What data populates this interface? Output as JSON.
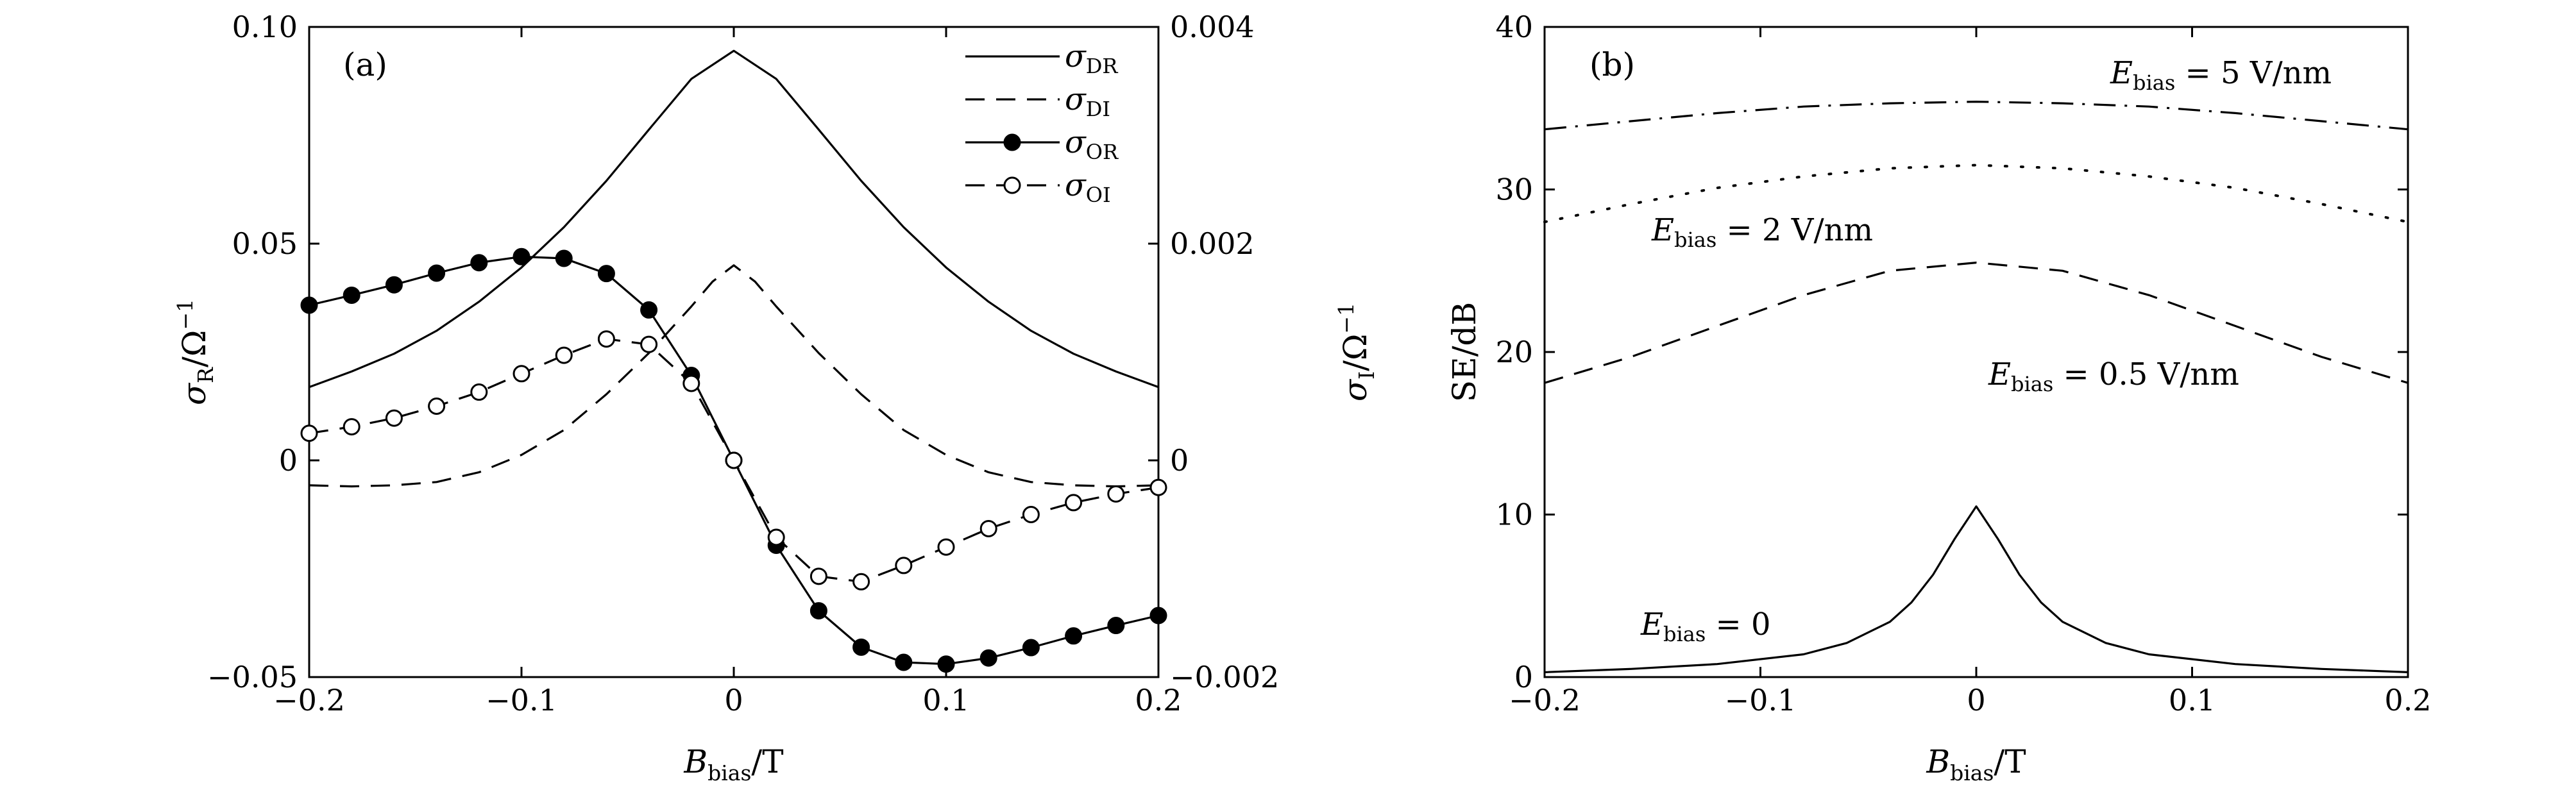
{
  "chart_data": [
    {
      "id": "a",
      "type": "line",
      "panel_label": "(a)",
      "xlabel": {
        "main": "B",
        "sub": "bias",
        "rest": "/T"
      },
      "ylabel_left": {
        "main": "σ",
        "sub": "R",
        "rest": "/Ω",
        "sup": "−1"
      },
      "ylabel_right": {
        "main": "σ",
        "sub": "I",
        "rest": "/Ω",
        "sup": "−1"
      },
      "xlim": [
        -0.2,
        0.2
      ],
      "ylim_left": [
        -0.05,
        0.1
      ],
      "ylim_right": [
        -0.002,
        0.004
      ],
      "x_ticks": [
        -0.2,
        -0.1,
        0,
        0.1,
        0.2
      ],
      "x_tick_labels": [
        "−0.2",
        "−0.1",
        "0",
        "0.1",
        "0.2"
      ],
      "y_left_ticks": [
        -0.05,
        0,
        0.05,
        0.1
      ],
      "y_left_tick_labels": [
        "−0.05",
        "0",
        "0.05",
        "0.10"
      ],
      "y_right_ticks": [
        -0.002,
        0,
        0.002,
        0.004
      ],
      "y_right_tick_labels": [
        "−0.002",
        "0",
        "0.002",
        "0.004"
      ],
      "legend_position": "top-right",
      "series": [
        {
          "name": "σDR",
          "legend_main": "σ",
          "legend_sub": "DR",
          "axis": "left",
          "style": "solid",
          "marker": "none",
          "x": [
            -0.2,
            -0.18,
            -0.16,
            -0.14,
            -0.12,
            -0.1,
            -0.08,
            -0.06,
            -0.04,
            -0.02,
            0,
            0.02,
            0.04,
            0.06,
            0.08,
            0.1,
            0.12,
            0.14,
            0.16,
            0.18,
            0.2
          ],
          "y": [
            0.0169,
            0.0205,
            0.0246,
            0.0299,
            0.0366,
            0.0445,
            0.0538,
            0.0645,
            0.0763,
            0.088,
            0.0945,
            0.088,
            0.0763,
            0.0645,
            0.0538,
            0.0445,
            0.0366,
            0.0299,
            0.0246,
            0.0205,
            0.0169
          ]
        },
        {
          "name": "σDI",
          "legend_main": "σ",
          "legend_sub": "DI",
          "axis": "right",
          "style": "dashed",
          "marker": "none",
          "x": [
            -0.2,
            -0.18,
            -0.16,
            -0.14,
            -0.12,
            -0.1,
            -0.08,
            -0.06,
            -0.04,
            -0.02,
            -0.01,
            0,
            0.01,
            0.02,
            0.04,
            0.06,
            0.08,
            0.1,
            0.12,
            0.14,
            0.16,
            0.18,
            0.2
          ],
          "y": [
            -0.00023,
            -0.00024,
            -0.00023,
            -0.0002,
            -0.00011,
            5e-05,
            0.00028,
            0.00061,
            0.00099,
            0.00142,
            0.00165,
            0.0018,
            0.00165,
            0.00142,
            0.00099,
            0.00061,
            0.00028,
            5e-05,
            -0.00011,
            -0.0002,
            -0.00023,
            -0.00024,
            -0.00023
          ]
        },
        {
          "name": "σOR",
          "legend_main": "σ",
          "legend_sub": "OR",
          "axis": "left",
          "style": "solid",
          "marker": "filled-circle",
          "x": [
            -0.2,
            -0.18,
            -0.16,
            -0.14,
            -0.12,
            -0.1,
            -0.08,
            -0.06,
            -0.04,
            -0.02,
            0,
            0.02,
            0.04,
            0.06,
            0.08,
            0.1,
            0.12,
            0.14,
            0.16,
            0.18,
            0.2
          ],
          "y": [
            0.0358,
            0.0381,
            0.0405,
            0.0432,
            0.0456,
            0.047,
            0.0466,
            0.0431,
            0.0347,
            0.0196,
            0,
            -0.0196,
            -0.0347,
            -0.0431,
            -0.0466,
            -0.047,
            -0.0456,
            -0.0432,
            -0.0405,
            -0.0381,
            -0.0358
          ]
        },
        {
          "name": "σOI",
          "legend_main": "σ",
          "legend_sub": "OI",
          "axis": "right",
          "style": "dashed",
          "marker": "open-circle",
          "x": [
            -0.2,
            -0.18,
            -0.16,
            -0.14,
            -0.12,
            -0.1,
            -0.08,
            -0.06,
            -0.04,
            -0.02,
            0,
            0.02,
            0.04,
            0.06,
            0.08,
            0.1,
            0.12,
            0.14,
            0.16,
            0.18,
            0.2
          ],
          "y": [
            0.00025,
            0.00031,
            0.00039,
            0.0005,
            0.00063,
            0.0008,
            0.00097,
            0.00112,
            0.00107,
            0.00071,
            0,
            -0.00071,
            -0.00107,
            -0.00112,
            -0.00097,
            -0.0008,
            -0.00063,
            -0.0005,
            -0.00039,
            -0.00031,
            -0.00025
          ]
        }
      ]
    },
    {
      "id": "b",
      "type": "line",
      "panel_label": "(b)",
      "xlabel": {
        "main": "B",
        "sub": "bias",
        "rest": "/T"
      },
      "ylabel": "SE/dB",
      "xlim": [
        -0.2,
        0.2
      ],
      "ylim": [
        0,
        40
      ],
      "x_ticks": [
        -0.2,
        -0.1,
        0,
        0.1,
        0.2
      ],
      "x_tick_labels": [
        "−0.2",
        "−0.1",
        "0",
        "0.1",
        "0.2"
      ],
      "y_ticks": [
        0,
        10,
        20,
        30,
        40
      ],
      "y_tick_labels": [
        "0",
        "10",
        "20",
        "30",
        "40"
      ],
      "series": [
        {
          "name": "Ebias = 0",
          "ann_main": "E",
          "ann_sub": "bias",
          "ann_rest": " = 0",
          "style": "solid",
          "x": [
            -0.2,
            -0.16,
            -0.12,
            -0.08,
            -0.06,
            -0.04,
            -0.03,
            -0.02,
            -0.01,
            0,
            0.01,
            0.02,
            0.03,
            0.04,
            0.06,
            0.08,
            0.12,
            0.16,
            0.2
          ],
          "y": [
            0.3,
            0.5,
            0.8,
            1.4,
            2.1,
            3.4,
            4.6,
            6.3,
            8.5,
            10.5,
            8.5,
            6.3,
            4.6,
            3.4,
            2.1,
            1.4,
            0.8,
            0.5,
            0.3
          ]
        },
        {
          "name": "Ebias = 0.5 V/nm",
          "ann_main": "E",
          "ann_sub": "bias",
          "ann_rest": " = 0.5 V/nm",
          "style": "dashed",
          "x": [
            -0.2,
            -0.16,
            -0.12,
            -0.08,
            -0.04,
            0,
            0.04,
            0.08,
            0.12,
            0.16,
            0.2
          ],
          "y": [
            18.1,
            19.7,
            21.6,
            23.5,
            25.0,
            25.5,
            25.0,
            23.5,
            21.6,
            19.7,
            18.1
          ]
        },
        {
          "name": "Ebias = 2 V/nm",
          "ann_main": "E",
          "ann_sub": "bias",
          "ann_rest": " = 2 V/nm",
          "style": "dotted",
          "x": [
            -0.2,
            -0.16,
            -0.12,
            -0.08,
            -0.04,
            0,
            0.04,
            0.08,
            0.12,
            0.16,
            0.2
          ],
          "y": [
            28.0,
            29.1,
            30.1,
            30.8,
            31.3,
            31.5,
            31.3,
            30.8,
            30.1,
            29.1,
            28.0
          ]
        },
        {
          "name": "Ebias = 5 V/nm",
          "ann_main": "E",
          "ann_sub": "bias",
          "ann_rest": " = 5 V/nm",
          "style": "dashdot",
          "x": [
            -0.2,
            -0.16,
            -0.12,
            -0.08,
            -0.04,
            0,
            0.04,
            0.08,
            0.12,
            0.16,
            0.2
          ],
          "y": [
            33.7,
            34.2,
            34.7,
            35.1,
            35.3,
            35.4,
            35.3,
            35.1,
            34.7,
            34.2,
            33.7
          ]
        }
      ]
    }
  ]
}
